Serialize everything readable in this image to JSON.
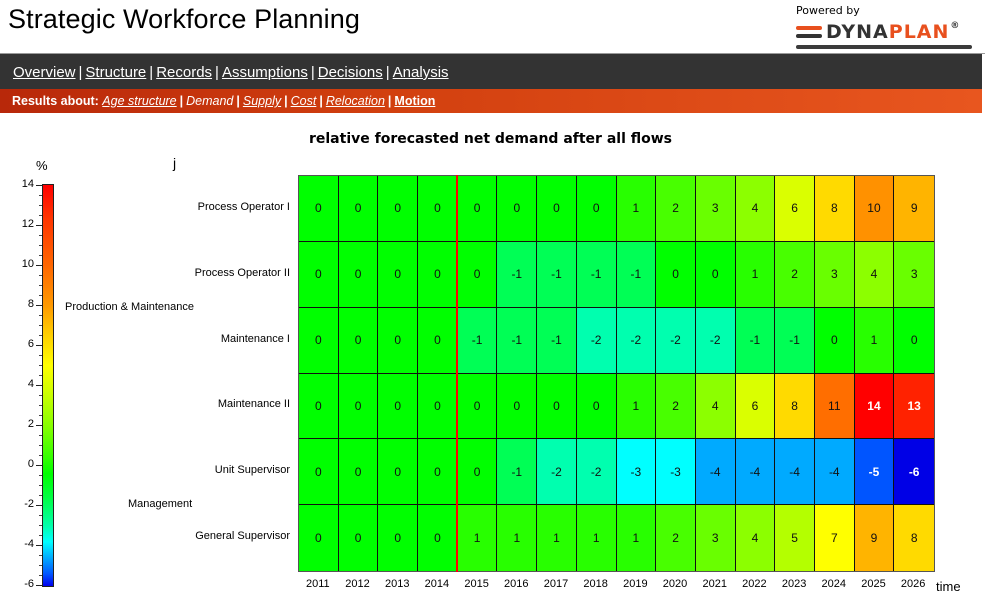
{
  "header": {
    "title": "Strategic Workforce Planning",
    "powered_by": "Powered by",
    "brand_dyna": "DYNA",
    "brand_plan": "PLAN",
    "brand_reg": "®"
  },
  "nav_main": {
    "items": [
      {
        "label": "Overview"
      },
      {
        "label": "Structure"
      },
      {
        "label": "Records"
      },
      {
        "label": "Assumptions"
      },
      {
        "label": "Decisions"
      },
      {
        "label": "Analysis"
      }
    ],
    "separator": "|"
  },
  "nav_sub": {
    "prefix": "Results about:",
    "items": [
      {
        "label": "Age structure"
      },
      {
        "label": "Demand"
      },
      {
        "label": "Supply"
      },
      {
        "label": "Cost"
      },
      {
        "label": "Relocation"
      },
      {
        "label": "Motion"
      }
    ],
    "separator": "|"
  },
  "colors": {
    "nav_main_bg": "#333333",
    "nav_sub_bg_start": "#b8280a",
    "nav_sub_bg_end": "#e8561f",
    "brand_orange": "#e8501e",
    "brand_dark": "#333333",
    "forecast_divider": "#ff0000"
  },
  "chart_data": {
    "type": "heatmap",
    "title": "relative forecasted net demand after all flows",
    "xlabel": "time",
    "ylabel": "j",
    "colorbar": {
      "label": "%",
      "range": [
        -6,
        14
      ],
      "ticks": [
        "14",
        "12",
        "10",
        "8",
        "6",
        "4",
        "2",
        "0",
        "-2",
        "-4",
        "-6"
      ]
    },
    "forecast_divider_between": [
      "2014",
      "2015"
    ],
    "x": [
      "2011",
      "2012",
      "2013",
      "2014",
      "2015",
      "2016",
      "2017",
      "2018",
      "2019",
      "2020",
      "2021",
      "2022",
      "2023",
      "2024",
      "2025",
      "2026"
    ],
    "groups": [
      {
        "label": "Production & Maintenance",
        "rows": [
          "Process Operator I",
          "Process Operator II",
          "Maintenance I",
          "Maintenance II"
        ]
      },
      {
        "label": "Management",
        "rows": [
          "Unit Supervisor",
          "General Supervisor"
        ]
      }
    ],
    "rows": [
      {
        "label": "Process Operator I",
        "values": [
          0,
          0,
          0,
          0,
          0,
          0,
          0,
          0,
          1,
          2,
          3,
          4,
          6,
          8,
          10,
          9
        ]
      },
      {
        "label": "Process Operator II",
        "values": [
          0,
          0,
          0,
          0,
          0,
          -1,
          -1,
          -1,
          -1,
          0,
          0,
          1,
          2,
          3,
          4,
          3
        ]
      },
      {
        "label": "Maintenance I",
        "values": [
          0,
          0,
          0,
          0,
          -1,
          -1,
          -1,
          -2,
          -2,
          -2,
          -2,
          -1,
          -1,
          0,
          1,
          0
        ]
      },
      {
        "label": "Maintenance II",
        "values": [
          0,
          0,
          0,
          0,
          0,
          0,
          0,
          0,
          1,
          2,
          4,
          6,
          8,
          11,
          14,
          13
        ]
      },
      {
        "label": "Unit Supervisor",
        "values": [
          0,
          0,
          0,
          0,
          0,
          -1,
          -2,
          -2,
          -3,
          -3,
          -4,
          -4,
          -4,
          -4,
          -5,
          -6
        ]
      },
      {
        "label": "General Supervisor",
        "values": [
          0,
          0,
          0,
          0,
          1,
          1,
          1,
          1,
          1,
          2,
          3,
          4,
          5,
          7,
          9,
          8
        ]
      }
    ]
  }
}
